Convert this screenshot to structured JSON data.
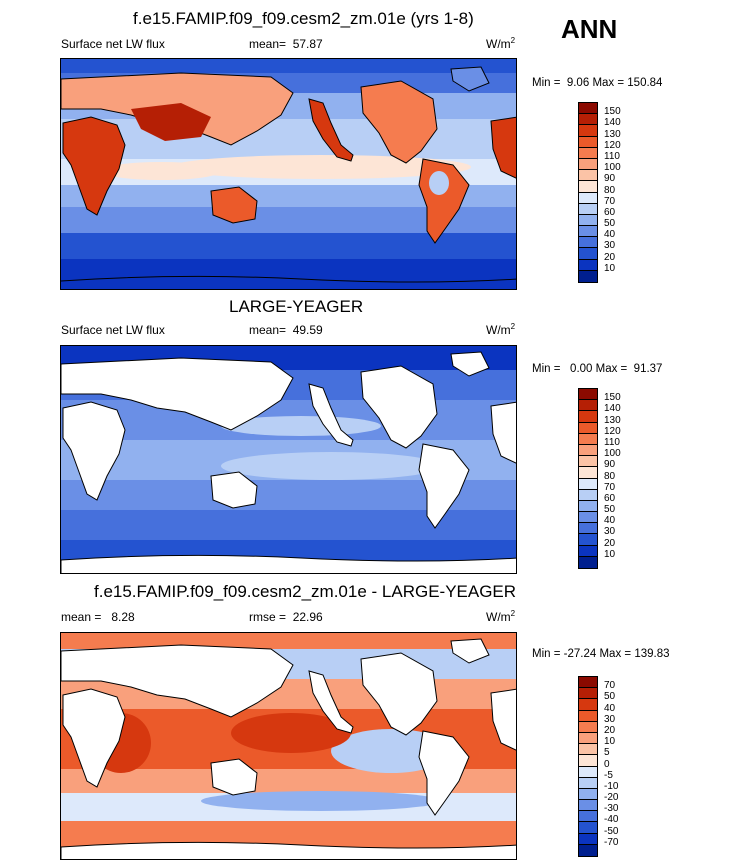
{
  "season": "ANN",
  "panels": [
    {
      "title": "f.e15.FAMIP.f09_f09.cesm2_zm.01e (yrs 1-8)",
      "left_label": "Surface net LW flux",
      "stat_label": "mean=",
      "stat_value": "57.87",
      "units_base": "W/m",
      "units_exp": "2",
      "min_label": "Min =",
      "min_value": "9.06",
      "max_label": "Max =",
      "max_value": "150.84",
      "levels": [
        "150",
        "140",
        "130",
        "120",
        "110",
        "100",
        "90",
        "80",
        "70",
        "60",
        "50",
        "40",
        "30",
        "20",
        "10"
      ],
      "colors": [
        "#8b0a00",
        "#b51f05",
        "#d6380f",
        "#eb5a2a",
        "#f57c4f",
        "#f9a07c",
        "#fbc3a6",
        "#fde5d6",
        "#dde9fb",
        "#b8cff5",
        "#91b1ef",
        "#6a8fe6",
        "#4670dc",
        "#2453d0",
        "#0b34c0",
        "#001f8f"
      ]
    },
    {
      "title": "LARGE-YEAGER",
      "left_label": "Surface net LW flux",
      "stat_label": "mean=",
      "stat_value": "49.59",
      "units_base": "W/m",
      "units_exp": "2",
      "min_label": "Min =",
      "min_value": "0.00",
      "max_label": "Max =",
      "max_value": "91.37",
      "levels": [
        "150",
        "140",
        "130",
        "120",
        "110",
        "100",
        "90",
        "80",
        "70",
        "60",
        "50",
        "40",
        "30",
        "20",
        "10"
      ],
      "colors": [
        "#8b0a00",
        "#b51f05",
        "#d6380f",
        "#eb5a2a",
        "#f57c4f",
        "#f9a07c",
        "#fbc3a6",
        "#fde5d6",
        "#dde9fb",
        "#b8cff5",
        "#91b1ef",
        "#6a8fe6",
        "#4670dc",
        "#2453d0",
        "#0b34c0",
        "#001f8f"
      ]
    },
    {
      "title": "f.e15.FAMIP.f09_f09.cesm2_zm.01e - LARGE-YEAGER",
      "left_label": "mean =   8.28",
      "stat_label": "rmse =",
      "stat_value": "22.96",
      "units_base": "W/m",
      "units_exp": "2",
      "min_label": "Min =",
      "min_value": "-27.24",
      "max_label": "Max =",
      "max_value": "139.83",
      "levels": [
        "70",
        "50",
        "40",
        "30",
        "20",
        "10",
        "5",
        "0",
        "-5",
        "-10",
        "-20",
        "-30",
        "-40",
        "-50",
        "-70"
      ],
      "colors": [
        "#8b0a00",
        "#b51f05",
        "#d6380f",
        "#eb5a2a",
        "#f57c4f",
        "#f9a07c",
        "#fbc3a6",
        "#fde5d6",
        "#dde9fb",
        "#b8cff5",
        "#91b1ef",
        "#6a8fe6",
        "#4670dc",
        "#2453d0",
        "#0b34c0",
        "#001f8f"
      ]
    }
  ]
}
